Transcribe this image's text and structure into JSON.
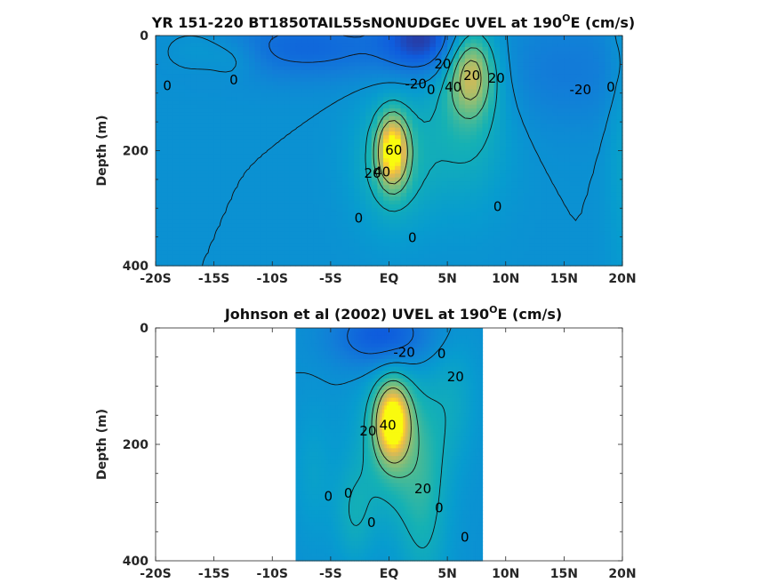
{
  "chart_data": [
    {
      "type": "heatmap",
      "title_prefix": "YR 151-220 BT1850TAIL55sNONUDGEc UVEL at 190",
      "title_sup": "O",
      "title_suffix": "E (cm/s)",
      "ylabel": "Depth (m)",
      "xlim": [
        -20,
        20
      ],
      "ylim": [
        0,
        400
      ],
      "xticks": [
        -20,
        -15,
        -10,
        -5,
        0,
        5,
        10,
        15,
        20
      ],
      "xtick_labels": [
        "-20S",
        "-15S",
        "-10S",
        "-5S",
        "EQ",
        "5N",
        "10N",
        "15N",
        "20N"
      ],
      "yticks": [
        0,
        200,
        400
      ],
      "ytick_labels": [
        "0",
        "200",
        "400"
      ],
      "data_xlim": [
        -20,
        20
      ],
      "background": "#1fb4b4",
      "features": [
        {
          "x": -7,
          "y": 20,
          "sx": 6,
          "sy": 40,
          "amp": -25
        },
        {
          "x": 0.3,
          "y": 200,
          "sx": 0.9,
          "sy": 42,
          "amp": 90
        },
        {
          "x": 0.4,
          "y": 220,
          "sx": 2.4,
          "sy": 80,
          "amp": 28
        },
        {
          "x": 7,
          "y": 65,
          "sx": 1.3,
          "sy": 48,
          "amp": 60
        },
        {
          "x": 6.7,
          "y": 120,
          "sx": 2.6,
          "sy": 115,
          "amp": 28
        },
        {
          "x": 3.2,
          "y": 5,
          "sx": 2.5,
          "sy": 45,
          "amp": -42
        },
        {
          "x": 15,
          "y": 60,
          "sx": 6,
          "sy": 70,
          "amp": -14
        },
        {
          "x": -16,
          "y": 25,
          "sx": 2,
          "sy": 25,
          "amp": 10
        },
        {
          "x": -13,
          "y": 40,
          "sx": 1.5,
          "sy": 25,
          "amp": 10
        },
        {
          "x": 20,
          "y": 150,
          "sx": 1,
          "sy": 200,
          "amp": 12
        }
      ],
      "contour_labels": [
        {
          "text": "0",
          "x": -19,
          "y": 88
        },
        {
          "text": "0",
          "x": -13.3,
          "y": 78
        },
        {
          "text": "-20",
          "x": 2.3,
          "y": 85
        },
        {
          "text": "20",
          "x": 4.6,
          "y": 50
        },
        {
          "text": "0",
          "x": 3.6,
          "y": 95
        },
        {
          "text": "40",
          "x": 5.5,
          "y": 90
        },
        {
          "text": "20",
          "x": 7.1,
          "y": 70
        },
        {
          "text": "20",
          "x": 9.2,
          "y": 75
        },
        {
          "text": "-20",
          "x": 16.4,
          "y": 95
        },
        {
          "text": "0",
          "x": 19,
          "y": 90
        },
        {
          "text": "60",
          "x": 0.4,
          "y": 200
        },
        {
          "text": "40",
          "x": -0.6,
          "y": 238
        },
        {
          "text": "20",
          "x": -1.4,
          "y": 240
        },
        {
          "text": "0",
          "x": -2.6,
          "y": 318
        },
        {
          "text": "0",
          "x": 2,
          "y": 352
        },
        {
          "text": "0",
          "x": 9.3,
          "y": 298
        }
      ]
    },
    {
      "type": "heatmap",
      "title_prefix": "Johnson et al (2002) UVEL at 190",
      "title_sup": "O",
      "title_suffix": "E (cm/s)",
      "ylabel": "Depth (m)",
      "xlim": [
        -20,
        20
      ],
      "ylim": [
        0,
        400
      ],
      "xticks": [
        -20,
        -15,
        -10,
        -5,
        0,
        5,
        10,
        15,
        20
      ],
      "xtick_labels": [
        "-20S",
        "-15S",
        "-10S",
        "-5S",
        "EQ",
        "5N",
        "10N",
        "15N",
        "20N"
      ],
      "yticks": [
        0,
        200,
        400
      ],
      "ytick_labels": [
        "0",
        "200",
        "400"
      ],
      "data_xlim": [
        -8,
        8
      ],
      "background": "#20aec0",
      "features": [
        {
          "x": 0.3,
          "y": 160,
          "sx": 1.0,
          "sy": 45,
          "amp": 100
        },
        {
          "x": 0.4,
          "y": 200,
          "sx": 2.2,
          "sy": 90,
          "amp": 30
        },
        {
          "x": -0.5,
          "y": 15,
          "sx": 3,
          "sy": 40,
          "amp": -35
        },
        {
          "x": 3,
          "y": 300,
          "sx": 1.5,
          "sy": 120,
          "amp": 22
        },
        {
          "x": -3,
          "y": 320,
          "sx": 1.2,
          "sy": 60,
          "amp": 18
        },
        {
          "x": 5.5,
          "y": 120,
          "sx": 1.5,
          "sy": 80,
          "amp": 14
        },
        {
          "x": -6.5,
          "y": 250,
          "sx": 1.2,
          "sy": 80,
          "amp": 10
        }
      ],
      "contour_labels": [
        {
          "text": "-20",
          "x": 1.3,
          "y": 43
        },
        {
          "text": "0",
          "x": 4.5,
          "y": 45
        },
        {
          "text": "20",
          "x": 5.7,
          "y": 85
        },
        {
          "text": "40",
          "x": -0.1,
          "y": 168
        },
        {
          "text": "20",
          "x": -1.8,
          "y": 178
        },
        {
          "text": "20",
          "x": 2.9,
          "y": 277
        },
        {
          "text": "0",
          "x": -5.2,
          "y": 290
        },
        {
          "text": "0",
          "x": -3.5,
          "y": 285
        },
        {
          "text": "0",
          "x": 4.3,
          "y": 310
        },
        {
          "text": "0",
          "x": -1.5,
          "y": 335
        },
        {
          "text": "0",
          "x": 6.5,
          "y": 360
        }
      ]
    }
  ]
}
